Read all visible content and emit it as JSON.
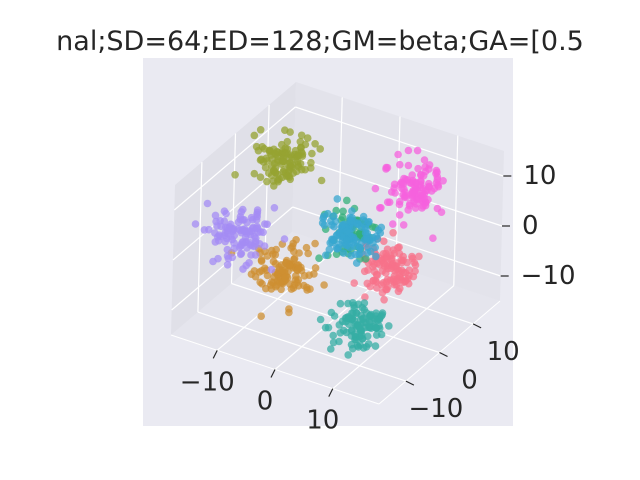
{
  "chart_data": {
    "type": "scatter",
    "projection": "3d",
    "title": "nal;SD=64;ED=128;GM=beta;GA=[0.5",
    "xlabel": "",
    "ylabel": "",
    "zlabel": "",
    "xlim": [
      -18,
      18
    ],
    "ylim": [
      -18,
      18
    ],
    "zlim": [
      -15,
      15
    ],
    "x_ticks": [
      "−10",
      "0",
      "10"
    ],
    "x_tick_values": [
      -10,
      0,
      10
    ],
    "y_ticks": [
      "−10",
      "0",
      "10"
    ],
    "y_tick_values": [
      -10,
      0,
      10
    ],
    "z_ticks": [
      "−10",
      "0",
      "10"
    ],
    "z_tick_values": [
      -10,
      0,
      10
    ],
    "grid": true,
    "legend": "none",
    "pane_color": "#eaeaf2",
    "grid_color": "#ffffff",
    "series": [
      {
        "color": "#f77189",
        "center": [
          10,
          -2,
          0
        ],
        "spread": 2.2,
        "count": 110
      },
      {
        "color": "#ce8f31",
        "center": [
          -2,
          -12,
          0
        ],
        "spread": 2.2,
        "count": 110
      },
      {
        "color": "#96a331",
        "center": [
          -12,
          4,
          10
        ],
        "spread": 2.2,
        "count": 110
      },
      {
        "color": "#33b07a",
        "center": [
          2,
          0,
          3
        ],
        "spread": 1.8,
        "count": 60
      },
      {
        "color": "#36ada4",
        "center": [
          10,
          -10,
          -7
        ],
        "spread": 2.2,
        "count": 110
      },
      {
        "color": "#38a7d0",
        "center": [
          2,
          0,
          2
        ],
        "spread": 2.2,
        "count": 110
      },
      {
        "color": "#a48cf4",
        "center": [
          -13,
          -6,
          0
        ],
        "spread": 2.2,
        "count": 110
      },
      {
        "color": "#f561dd",
        "center": [
          7,
          10,
          8
        ],
        "spread": 2.2,
        "count": 110
      }
    ]
  }
}
